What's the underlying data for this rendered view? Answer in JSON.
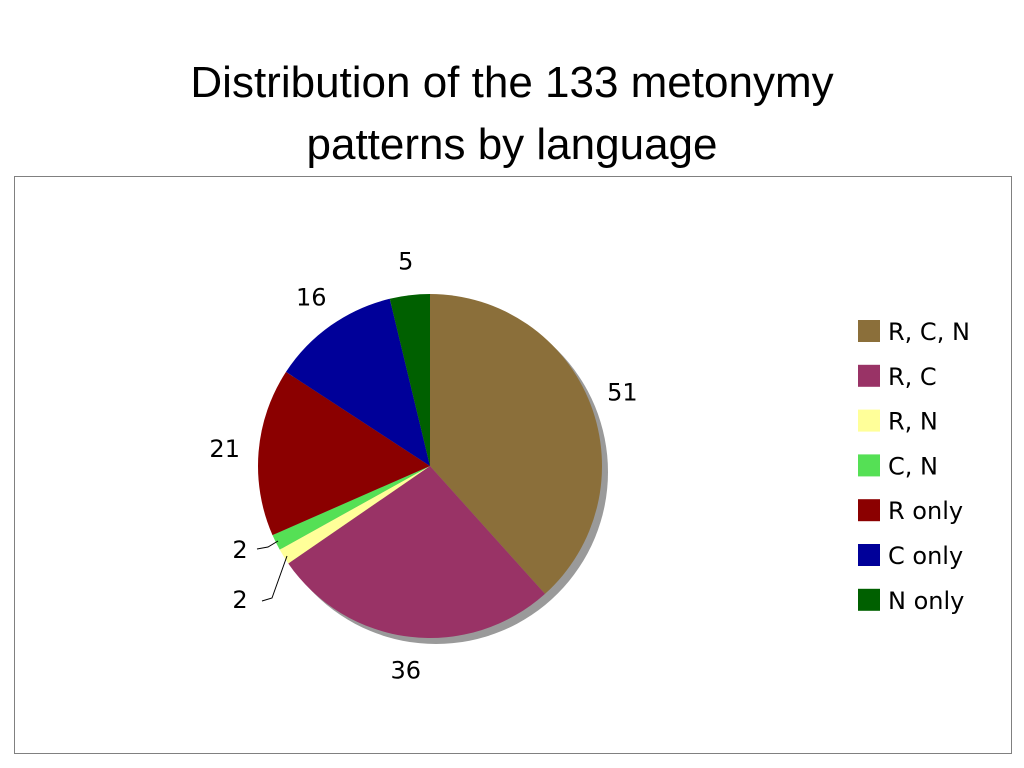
{
  "title": {
    "line1": "Distribution of the 133 metonymy",
    "line2": "patterns by language"
  },
  "chart_data": {
    "type": "pie",
    "title": "Distribution of the 133 metonymy patterns by language",
    "categories": [
      "R, C, N",
      "R, C",
      "R, N",
      "C, N",
      "R only",
      "C only",
      "N only"
    ],
    "values": [
      51,
      36,
      2,
      2,
      21,
      16,
      5
    ],
    "colors": [
      "#8B6F3A",
      "#993366",
      "#FFFF99",
      "#55E055",
      "#8B0000",
      "#000099",
      "#006000"
    ],
    "data_labels": [
      "51",
      "36",
      "2",
      "2",
      "21",
      "16",
      "5"
    ],
    "legend_position": "right",
    "start_angle_deg": 0,
    "direction": "clockwise",
    "shadow": true
  }
}
